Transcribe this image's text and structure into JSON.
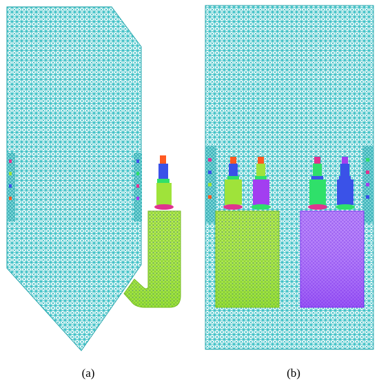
{
  "captions": {
    "a": "(a)",
    "b": "(b)"
  },
  "colors": {
    "mesh": "#3ec1c6",
    "mesh_dark": "#1f9aa3",
    "lime": "#9fe33a",
    "green": "#2fe06a",
    "violet": "#a23ef0",
    "blue": "#3a52e8",
    "magenta": "#e0338f",
    "orange": "#ff5a22",
    "mesh_bg": "#ffffff"
  }
}
